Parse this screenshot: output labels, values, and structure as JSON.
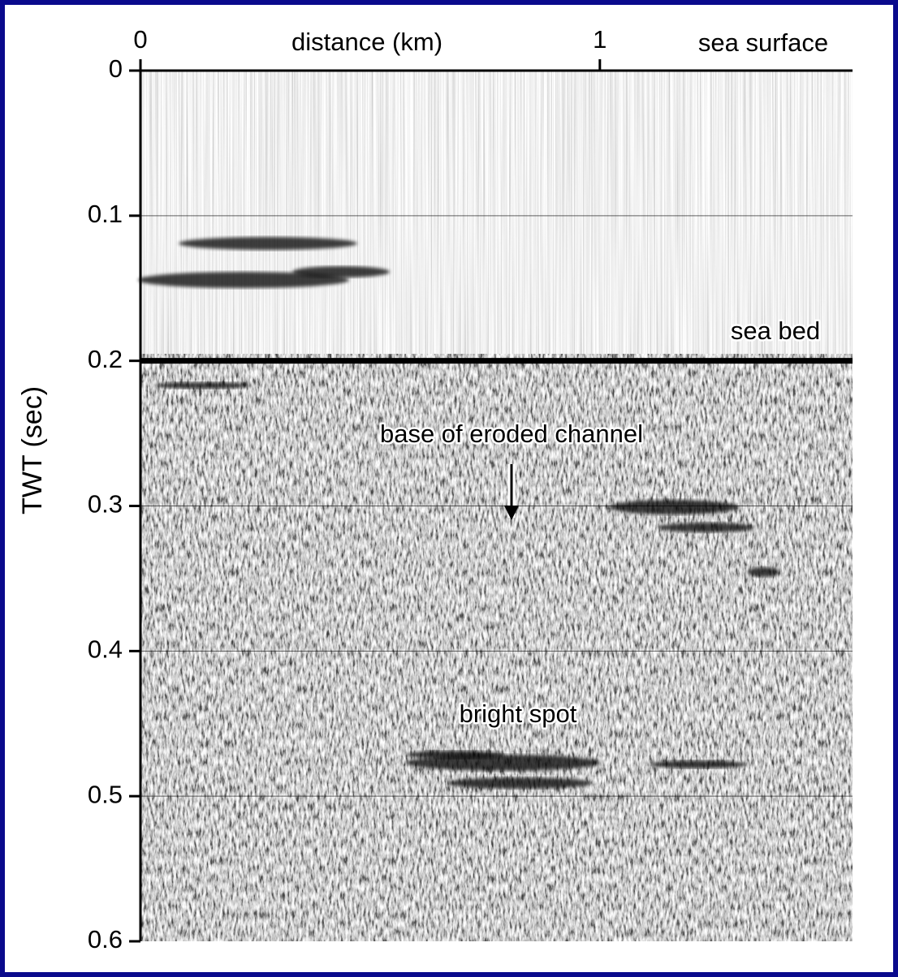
{
  "chart_data": {
    "type": "seismic-section",
    "x_label": "distance (km)",
    "y_label": "TWT (sec)",
    "xlim": [
      0,
      1.55
    ],
    "xticks": [
      0,
      1
    ],
    "x_axis_position": "top",
    "ylim": [
      0,
      0.6
    ],
    "yticks": [
      0,
      0.1,
      0.2,
      0.3,
      0.4,
      0.5,
      0.6
    ],
    "y_axis_inverted": true,
    "grid": true,
    "color": "#000000",
    "annotations": [
      "sea surface",
      "sea bed",
      "base of eroded channel",
      "bright spot"
    ]
  }
}
